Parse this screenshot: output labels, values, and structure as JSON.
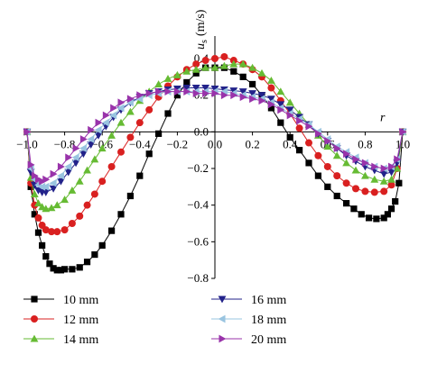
{
  "chart_data": {
    "type": "line",
    "xlabel": "r",
    "ylabel_main": "u",
    "ylabel_sub": "s",
    "ylabel_unit": "(m/s)",
    "xlim": [
      -1.0,
      1.0
    ],
    "ylim": [
      -0.8,
      0.4
    ],
    "xticks": [
      "−1.0",
      "−0.8",
      "−0.6",
      "−0.4",
      "−0.2",
      "0.0",
      "0.2",
      "0.4",
      "0.6",
      "0.8",
      "1.0"
    ],
    "yticks": [
      "−0.8",
      "−0.6",
      "−0.4",
      "−0.2",
      "0.0",
      "0.2",
      "0.4"
    ],
    "series": [
      {
        "name": "10 mm",
        "color": "#000000",
        "marker": "square",
        "x": [
          -1.0,
          -0.98,
          -0.96,
          -0.94,
          -0.92,
          -0.9,
          -0.88,
          -0.86,
          -0.84,
          -0.82,
          -0.8,
          -0.76,
          -0.72,
          -0.68,
          -0.64,
          -0.6,
          -0.55,
          -0.5,
          -0.45,
          -0.4,
          -0.35,
          -0.3,
          -0.25,
          -0.2,
          -0.15,
          -0.1,
          -0.05,
          0.0,
          0.05,
          0.1,
          0.15,
          0.2,
          0.25,
          0.3,
          0.35,
          0.4,
          0.45,
          0.5,
          0.55,
          0.6,
          0.65,
          0.7,
          0.74,
          0.78,
          0.82,
          0.86,
          0.9,
          0.92,
          0.94,
          0.96,
          0.98,
          1.0
        ],
        "y": [
          0.0,
          -0.3,
          -0.45,
          -0.55,
          -0.62,
          -0.68,
          -0.72,
          -0.745,
          -0.755,
          -0.755,
          -0.75,
          -0.75,
          -0.74,
          -0.71,
          -0.67,
          -0.62,
          -0.54,
          -0.45,
          -0.35,
          -0.24,
          -0.12,
          -0.01,
          0.1,
          0.2,
          0.27,
          0.32,
          0.35,
          0.35,
          0.35,
          0.33,
          0.3,
          0.26,
          0.2,
          0.13,
          0.05,
          -0.03,
          -0.1,
          -0.17,
          -0.24,
          -0.3,
          -0.35,
          -0.39,
          -0.42,
          -0.45,
          -0.47,
          -0.475,
          -0.47,
          -0.45,
          -0.42,
          -0.38,
          -0.28,
          0.0
        ]
      },
      {
        "name": "12 mm",
        "color": "#d92020",
        "marker": "circle",
        "x": [
          -1.0,
          -0.98,
          -0.96,
          -0.94,
          -0.92,
          -0.9,
          -0.87,
          -0.84,
          -0.8,
          -0.76,
          -0.72,
          -0.68,
          -0.64,
          -0.6,
          -0.55,
          -0.5,
          -0.45,
          -0.4,
          -0.35,
          -0.3,
          -0.25,
          -0.2,
          -0.15,
          -0.1,
          -0.05,
          0.0,
          0.05,
          0.1,
          0.15,
          0.2,
          0.25,
          0.3,
          0.35,
          0.4,
          0.45,
          0.5,
          0.55,
          0.6,
          0.65,
          0.7,
          0.75,
          0.8,
          0.85,
          0.9,
          0.94,
          0.97,
          1.0
        ],
        "y": [
          0.0,
          -0.28,
          -0.4,
          -0.47,
          -0.51,
          -0.535,
          -0.545,
          -0.545,
          -0.535,
          -0.5,
          -0.46,
          -0.4,
          -0.34,
          -0.27,
          -0.19,
          -0.11,
          -0.03,
          0.05,
          0.12,
          0.19,
          0.25,
          0.3,
          0.34,
          0.37,
          0.39,
          0.4,
          0.41,
          0.39,
          0.37,
          0.34,
          0.3,
          0.24,
          0.17,
          0.1,
          0.02,
          -0.06,
          -0.13,
          -0.19,
          -0.24,
          -0.28,
          -0.31,
          -0.325,
          -0.33,
          -0.325,
          -0.29,
          -0.2,
          0.0
        ]
      },
      {
        "name": "14 mm",
        "color": "#66bb33",
        "marker": "triangle-up",
        "x": [
          -1.0,
          -0.98,
          -0.96,
          -0.94,
          -0.92,
          -0.9,
          -0.87,
          -0.84,
          -0.8,
          -0.76,
          -0.72,
          -0.68,
          -0.64,
          -0.6,
          -0.55,
          -0.5,
          -0.45,
          -0.4,
          -0.35,
          -0.3,
          -0.25,
          -0.2,
          -0.15,
          -0.1,
          -0.05,
          0.0,
          0.05,
          0.1,
          0.15,
          0.2,
          0.25,
          0.3,
          0.35,
          0.4,
          0.45,
          0.5,
          0.55,
          0.6,
          0.65,
          0.7,
          0.75,
          0.8,
          0.85,
          0.9,
          0.94,
          0.97,
          1.0
        ],
        "y": [
          0.0,
          -0.25,
          -0.34,
          -0.39,
          -0.41,
          -0.42,
          -0.415,
          -0.4,
          -0.37,
          -0.32,
          -0.27,
          -0.21,
          -0.15,
          -0.09,
          -0.02,
          0.05,
          0.11,
          0.17,
          0.22,
          0.26,
          0.29,
          0.31,
          0.33,
          0.34,
          0.35,
          0.35,
          0.36,
          0.37,
          0.37,
          0.35,
          0.32,
          0.28,
          0.22,
          0.16,
          0.1,
          0.04,
          -0.02,
          -0.08,
          -0.13,
          -0.17,
          -0.21,
          -0.24,
          -0.26,
          -0.27,
          -0.26,
          -0.2,
          0.0
        ]
      },
      {
        "name": "16 mm",
        "color": "#22228a",
        "marker": "triangle-down",
        "x": [
          -1.0,
          -0.98,
          -0.96,
          -0.94,
          -0.92,
          -0.9,
          -0.86,
          -0.82,
          -0.78,
          -0.74,
          -0.7,
          -0.66,
          -0.62,
          -0.58,
          -0.54,
          -0.5,
          -0.45,
          -0.4,
          -0.35,
          -0.3,
          -0.25,
          -0.2,
          -0.15,
          -0.1,
          -0.05,
          0.0,
          0.05,
          0.1,
          0.15,
          0.2,
          0.25,
          0.3,
          0.35,
          0.4,
          0.45,
          0.5,
          0.55,
          0.6,
          0.65,
          0.7,
          0.75,
          0.8,
          0.85,
          0.9,
          0.94,
          0.97,
          1.0
        ],
        "y": [
          0.0,
          -0.22,
          -0.29,
          -0.32,
          -0.33,
          -0.33,
          -0.31,
          -0.27,
          -0.22,
          -0.17,
          -0.12,
          -0.07,
          -0.02,
          0.03,
          0.08,
          0.12,
          0.16,
          0.19,
          0.21,
          0.22,
          0.23,
          0.235,
          0.24,
          0.24,
          0.24,
          0.235,
          0.23,
          0.225,
          0.22,
          0.21,
          0.2,
          0.18,
          0.15,
          0.12,
          0.08,
          0.04,
          -0.01,
          -0.05,
          -0.09,
          -0.13,
          -0.16,
          -0.19,
          -0.21,
          -0.23,
          -0.22,
          -0.17,
          0.0
        ]
      },
      {
        "name": "18 mm",
        "color": "#99c4e0",
        "marker": "triangle-left",
        "x": [
          -1.0,
          -0.98,
          -0.96,
          -0.94,
          -0.92,
          -0.9,
          -0.86,
          -0.82,
          -0.78,
          -0.74,
          -0.7,
          -0.66,
          -0.62,
          -0.58,
          -0.54,
          -0.5,
          -0.45,
          -0.4,
          -0.35,
          -0.3,
          -0.25,
          -0.2,
          -0.15,
          -0.1,
          -0.05,
          0.0,
          0.05,
          0.1,
          0.15,
          0.2,
          0.25,
          0.3,
          0.35,
          0.4,
          0.45,
          0.5,
          0.55,
          0.6,
          0.65,
          0.7,
          0.75,
          0.8,
          0.85,
          0.9,
          0.94,
          0.97,
          1.0
        ],
        "y": [
          0.0,
          -0.2,
          -0.26,
          -0.29,
          -0.3,
          -0.3,
          -0.28,
          -0.24,
          -0.19,
          -0.14,
          -0.09,
          -0.04,
          0.01,
          0.05,
          0.09,
          0.13,
          0.16,
          0.18,
          0.2,
          0.21,
          0.22,
          0.22,
          0.22,
          0.22,
          0.22,
          0.22,
          0.22,
          0.21,
          0.2,
          0.19,
          0.18,
          0.16,
          0.13,
          0.1,
          0.07,
          0.04,
          0.0,
          -0.04,
          -0.08,
          -0.11,
          -0.14,
          -0.17,
          -0.19,
          -0.2,
          -0.19,
          -0.15,
          0.0
        ]
      },
      {
        "name": "20 mm",
        "color": "#9933aa",
        "marker": "triangle-right",
        "x": [
          -1.0,
          -0.98,
          -0.96,
          -0.94,
          -0.92,
          -0.9,
          -0.86,
          -0.82,
          -0.78,
          -0.74,
          -0.7,
          -0.66,
          -0.62,
          -0.58,
          -0.54,
          -0.5,
          -0.45,
          -0.4,
          -0.35,
          -0.3,
          -0.25,
          -0.2,
          -0.15,
          -0.1,
          -0.05,
          0.0,
          0.05,
          0.1,
          0.15,
          0.2,
          0.25,
          0.3,
          0.35,
          0.4,
          0.45,
          0.5,
          0.55,
          0.6,
          0.65,
          0.7,
          0.75,
          0.8,
          0.85,
          0.9,
          0.94,
          0.97,
          1.0
        ],
        "y": [
          0.0,
          -0.18,
          -0.24,
          -0.26,
          -0.27,
          -0.26,
          -0.23,
          -0.19,
          -0.14,
          -0.09,
          -0.04,
          0.01,
          0.05,
          0.09,
          0.13,
          0.16,
          0.18,
          0.2,
          0.21,
          0.22,
          0.22,
          0.22,
          0.22,
          0.21,
          0.21,
          0.21,
          0.2,
          0.2,
          0.19,
          0.18,
          0.17,
          0.15,
          0.12,
          0.09,
          0.06,
          0.03,
          -0.01,
          -0.05,
          -0.09,
          -0.12,
          -0.15,
          -0.17,
          -0.19,
          -0.2,
          -0.19,
          -0.15,
          0.0
        ]
      }
    ]
  }
}
